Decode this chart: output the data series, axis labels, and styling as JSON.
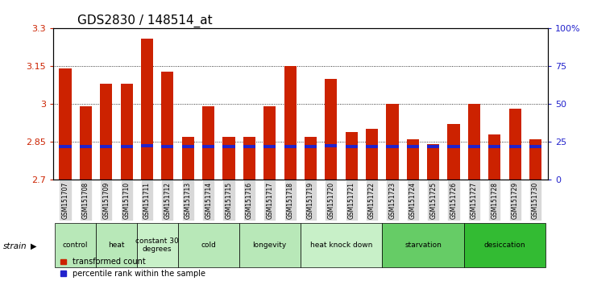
{
  "title": "GDS2830 / 148514_at",
  "samples": [
    "GSM151707",
    "GSM151708",
    "GSM151709",
    "GSM151710",
    "GSM151711",
    "GSM151712",
    "GSM151713",
    "GSM151714",
    "GSM151715",
    "GSM151716",
    "GSM151717",
    "GSM151718",
    "GSM151719",
    "GSM151720",
    "GSM151721",
    "GSM151722",
    "GSM151723",
    "GSM151724",
    "GSM151725",
    "GSM151726",
    "GSM151727",
    "GSM151728",
    "GSM151729",
    "GSM151730"
  ],
  "red_values": [
    3.14,
    2.99,
    3.08,
    3.08,
    3.26,
    3.13,
    2.87,
    2.99,
    2.87,
    2.87,
    2.99,
    3.15,
    2.87,
    3.1,
    2.89,
    2.9,
    3.0,
    2.86,
    2.84,
    2.92,
    3.0,
    2.88,
    2.98,
    2.86
  ],
  "blue_values": [
    2.832,
    2.832,
    2.832,
    2.832,
    2.835,
    2.832,
    2.832,
    2.832,
    2.832,
    2.832,
    2.832,
    2.832,
    2.832,
    2.835,
    2.832,
    2.832,
    2.832,
    2.832,
    2.832,
    2.832,
    2.832,
    2.832,
    2.832,
    2.832
  ],
  "ymin": 2.7,
  "ymax": 3.3,
  "yticks": [
    2.7,
    2.85,
    3.0,
    3.15,
    3.3
  ],
  "ytick_labels": [
    "2.7",
    "2.85",
    "3",
    "3.15",
    "3.3"
  ],
  "right_yticks": [
    0,
    25,
    50,
    75,
    100
  ],
  "right_ytick_labels": [
    "0",
    "25",
    "50",
    "75",
    "100%"
  ],
  "grid_lines": [
    3.15,
    3.0,
    2.85
  ],
  "groups": [
    {
      "label": "control",
      "start": 0,
      "end": 2,
      "color": "#b8e8b8"
    },
    {
      "label": "heat",
      "start": 2,
      "end": 4,
      "color": "#b8e8b8"
    },
    {
      "label": "constant 30\ndegrees",
      "start": 4,
      "end": 6,
      "color": "#c8f0c8"
    },
    {
      "label": "cold",
      "start": 6,
      "end": 9,
      "color": "#b8e8b8"
    },
    {
      "label": "longevity",
      "start": 9,
      "end": 12,
      "color": "#b8e8b8"
    },
    {
      "label": "heat knock down",
      "start": 12,
      "end": 16,
      "color": "#c8f0c8"
    },
    {
      "label": "starvation",
      "start": 16,
      "end": 20,
      "color": "#66cc66"
    },
    {
      "label": "desiccation",
      "start": 20,
      "end": 24,
      "color": "#33bb33"
    }
  ],
  "bar_color_red": "#cc2200",
  "bar_color_blue": "#2222cc",
  "bar_width": 0.6,
  "title_fontsize": 11,
  "axis_label_color_red": "#cc2200",
  "axis_label_color_blue": "#2222cc",
  "tick_bg": "#d8d8d8",
  "legend_red": "transformed count",
  "legend_blue": "percentile rank within the sample"
}
